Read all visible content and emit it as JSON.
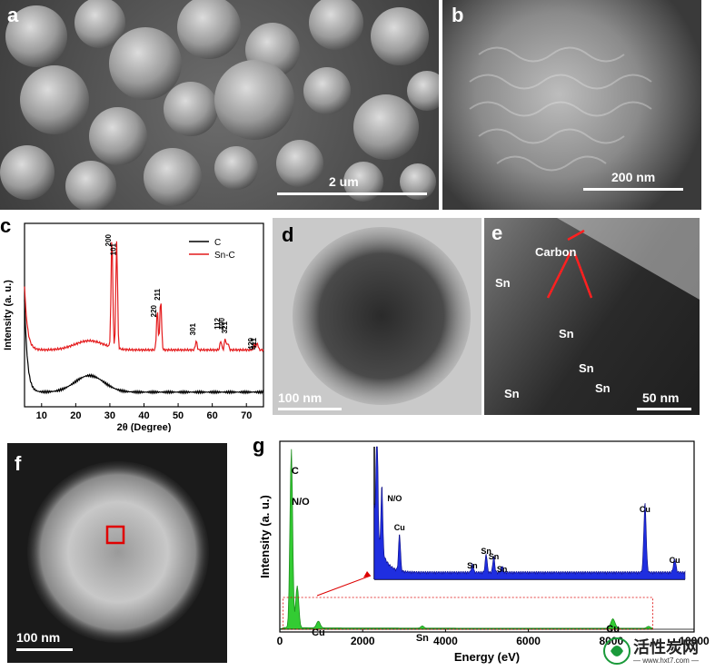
{
  "panels": {
    "a": {
      "label": "a",
      "scalebar": "2 um"
    },
    "b": {
      "label": "b",
      "scalebar": "200 nm"
    },
    "c": {
      "label": "c"
    },
    "d": {
      "label": "d",
      "scalebar": "100 nm"
    },
    "e": {
      "label": "e",
      "scalebar": "50 nm",
      "annotations": [
        "Carbon",
        "Sn",
        "Sn",
        "Sn",
        "Sn",
        "Sn"
      ]
    },
    "f": {
      "label": "f",
      "scalebar": "100 nm"
    },
    "g": {
      "label": "g"
    }
  },
  "chart_data": [
    {
      "type": "line",
      "panel": "c",
      "xlabel": "2θ (Degree)",
      "ylabel": "Intensity (a. u.)",
      "xlim": [
        5,
        75
      ],
      "xticks": [
        10,
        20,
        30,
        40,
        50,
        60,
        70
      ],
      "legend_position": "top-right",
      "series": [
        {
          "name": "C",
          "color": "#000000"
        },
        {
          "name": "Sn-C",
          "color": "#e41a1c"
        }
      ],
      "peaks": [
        {
          "label": "200",
          "x": 30.6
        },
        {
          "label": "101",
          "x": 32.0
        },
        {
          "label": "220",
          "x": 43.9
        },
        {
          "label": "211",
          "x": 44.9
        },
        {
          "label": "301",
          "x": 55.3
        },
        {
          "label": "112",
          "x": 62.5
        },
        {
          "label": "400",
          "x": 63.8
        },
        {
          "label": "321",
          "x": 64.6
        },
        {
          "label": "420",
          "x": 72.4
        },
        {
          "label": "411",
          "x": 73.2
        }
      ]
    },
    {
      "type": "area",
      "panel": "g",
      "xlabel": "Energy (eV)",
      "ylabel": "Intensity (a. u.)",
      "xlim": [
        0,
        10000
      ],
      "xticks": [
        0,
        2000,
        4000,
        6000,
        8000,
        10000
      ],
      "main_labels": [
        {
          "text": "C",
          "x": 277
        },
        {
          "text": "N/O",
          "x": 420
        },
        {
          "text": "Cu",
          "x": 930
        },
        {
          "text": "Sn",
          "x": 3440
        },
        {
          "text": "Cu",
          "x": 8040
        }
      ],
      "inset_labels": [
        {
          "text": "N/O",
          "x": 420
        },
        {
          "text": "Cu",
          "x": 930
        },
        {
          "text": "Sn",
          "x": 3040
        },
        {
          "text": "Sn",
          "x": 3440
        },
        {
          "text": "Sn",
          "x": 3660
        },
        {
          "text": "Sn",
          "x": 3900
        },
        {
          "text": "Cu",
          "x": 8040
        },
        {
          "text": "Cu",
          "x": 8900
        }
      ],
      "main_color": "#33cc33",
      "inset_color": "#1f2ee0"
    }
  ],
  "watermark": {
    "text": "活性炭网",
    "url": "— www.hxt7.com —"
  }
}
